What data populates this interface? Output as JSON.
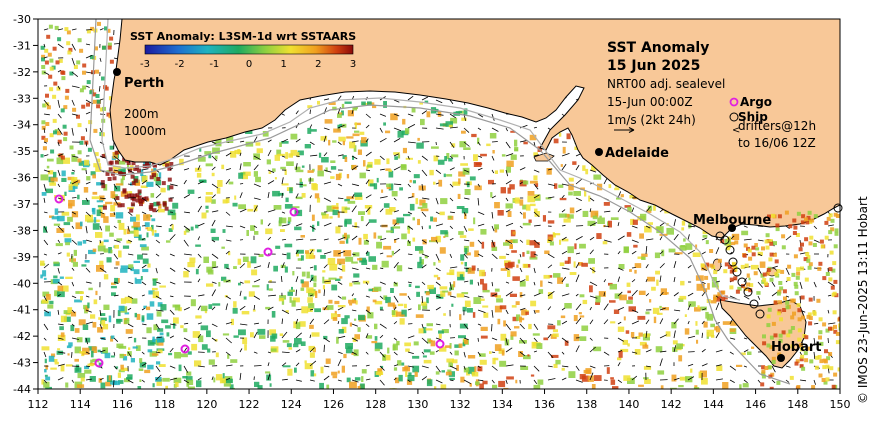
{
  "colorbar": {
    "title": "SST Anomaly: L3SM-1d wrt SSTAARS",
    "ticks": [
      "-3",
      "-2",
      "-1",
      "0",
      "1",
      "2",
      "3"
    ],
    "colors": [
      "#1a1aa0",
      "#1e6fd0",
      "#1fb3c0",
      "#1faa60",
      "#8fd040",
      "#f0e030",
      "#f0a020",
      "#d04010",
      "#8a0a0a"
    ]
  },
  "title": {
    "line1": "SST Anomaly",
    "line2": "15 Jun 2025"
  },
  "info": {
    "line1": "NRT00 adj. sealevel",
    "line2": "15-Jun 00:00Z",
    "line3": "1m/s (2kt 24h)"
  },
  "legend": {
    "argo": "Argo",
    "ship": "Ship",
    "drifters_line1": "drifters@12h",
    "drifters_line2": "to 16/06 12Z"
  },
  "depth_legend": {
    "d200": "200m",
    "d1000": "1000m"
  },
  "cities": {
    "perth": "Perth",
    "adelaide": "Adelaide",
    "melbourne": "Melbourne",
    "hobart": "Hobart"
  },
  "axes": {
    "x_ticks": [
      "112",
      "114",
      "116",
      "118",
      "120",
      "122",
      "124",
      "126",
      "128",
      "130",
      "132",
      "134",
      "136",
      "138",
      "140",
      "142",
      "144",
      "146",
      "148",
      "150"
    ],
    "y_ticks": [
      "-30",
      "-31",
      "-32",
      "-33",
      "-34",
      "-35",
      "-36",
      "-37",
      "-38",
      "-39",
      "-40",
      "-41",
      "-42",
      "-43",
      "-44"
    ]
  },
  "colors": {
    "land": "#f8c898",
    "ocean": "#ffffff",
    "argo": "#e020e0"
  },
  "credit": "© IMOS 23-Jun-2025 13:11 Hobart"
}
